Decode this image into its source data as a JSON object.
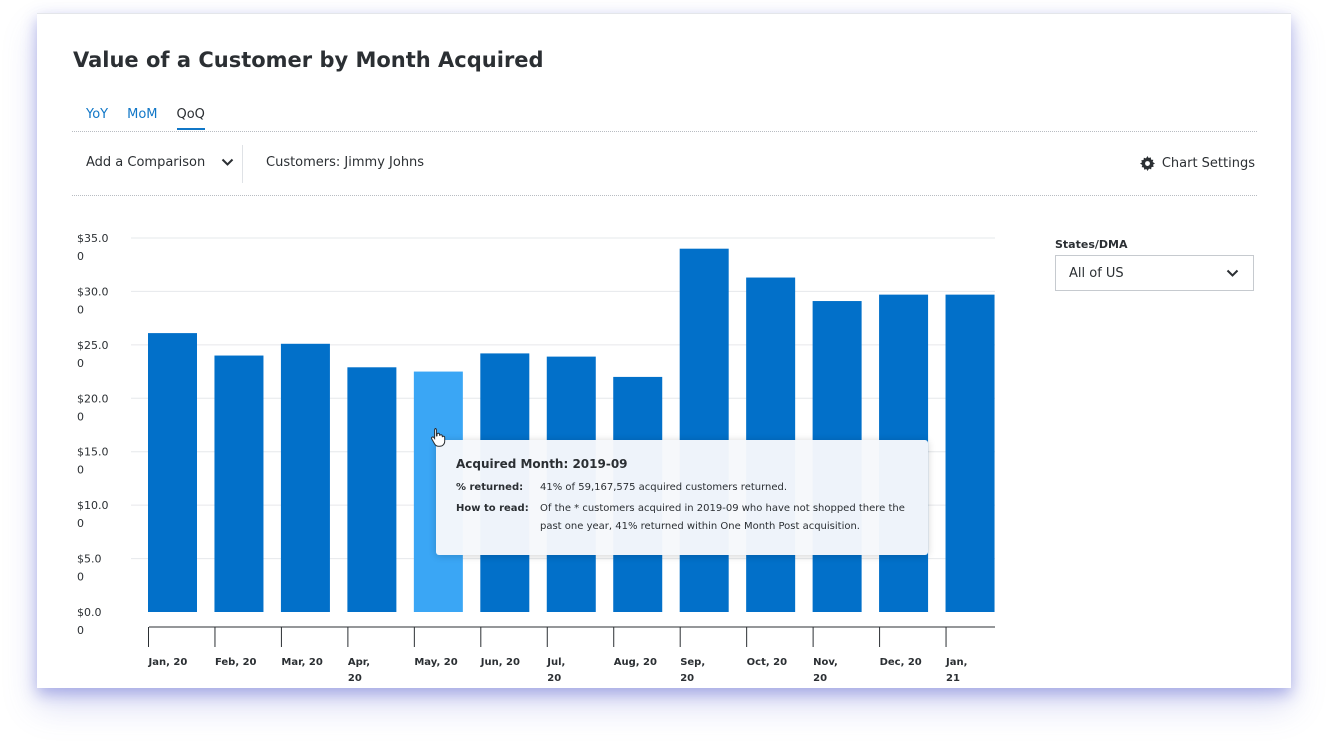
{
  "header": {
    "title": "Value of a Customer by Month Acquired"
  },
  "tabs": [
    {
      "label": "YoY",
      "active": false
    },
    {
      "label": "MoM",
      "active": false
    },
    {
      "label": "QoQ",
      "active": true
    }
  ],
  "toolbar": {
    "comparison_label": "Add a Comparison",
    "customers_label": "Customers: Jimmy Johns",
    "settings_label": "Chart Settings"
  },
  "filter": {
    "label": "States/DMA",
    "value": "All of US"
  },
  "tooltip": {
    "title": "Acquired Month: 2019-09",
    "rows": [
      {
        "key": "% returned:",
        "value": "41% of 59,167,575 acquired customers returned."
      },
      {
        "key": "How to read:",
        "value": "Of the * customers acquired in 2019-09 who have not shopped there the past one year, 41% returned within One Month Post acquisition."
      }
    ]
  },
  "colors": {
    "bar": "#0270c9",
    "bar_highlight": "#3aa6f5",
    "accent": "#1177c7"
  },
  "chart_data": {
    "type": "bar",
    "title": "Value of a Customer by Month Acquired",
    "xlabel": "",
    "ylabel": "",
    "ylim": [
      0,
      35
    ],
    "grid": true,
    "highlight_index": 4,
    "y_ticks": [
      {
        "value": 35,
        "l1": "$35.0",
        "l2": "0"
      },
      {
        "value": 30,
        "l1": "$30.0",
        "l2": "0"
      },
      {
        "value": 25,
        "l1": "$25.0",
        "l2": "0"
      },
      {
        "value": 20,
        "l1": "$20.0",
        "l2": "0"
      },
      {
        "value": 15,
        "l1": "$15.0",
        "l2": "0"
      },
      {
        "value": 10,
        "l1": "$10.0",
        "l2": "0"
      },
      {
        "value": 5,
        "l1": "$5.0",
        "l2": "0"
      },
      {
        "value": 0,
        "l1": "$0.0",
        "l2": "0"
      }
    ],
    "categories": [
      {
        "l1": "Jan, 20",
        "l2": ""
      },
      {
        "l1": "Feb, 20",
        "l2": ""
      },
      {
        "l1": "Mar, 20",
        "l2": ""
      },
      {
        "l1": "Apr,",
        "l2": "20"
      },
      {
        "l1": "May, 20",
        "l2": ""
      },
      {
        "l1": "Jun, 20",
        "l2": ""
      },
      {
        "l1": "Jul,",
        "l2": "20"
      },
      {
        "l1": "Aug, 20",
        "l2": ""
      },
      {
        "l1": "Sep,",
        "l2": "20"
      },
      {
        "l1": "Oct, 20",
        "l2": ""
      },
      {
        "l1": "Nov,",
        "l2": "20"
      },
      {
        "l1": "Dec, 20",
        "l2": ""
      },
      {
        "l1": "Jan,",
        "l2": "21"
      }
    ],
    "values": [
      26.1,
      24.0,
      25.1,
      22.9,
      22.5,
      24.2,
      23.9,
      22.0,
      34.0,
      31.3,
      29.1,
      29.7,
      29.7
    ]
  }
}
